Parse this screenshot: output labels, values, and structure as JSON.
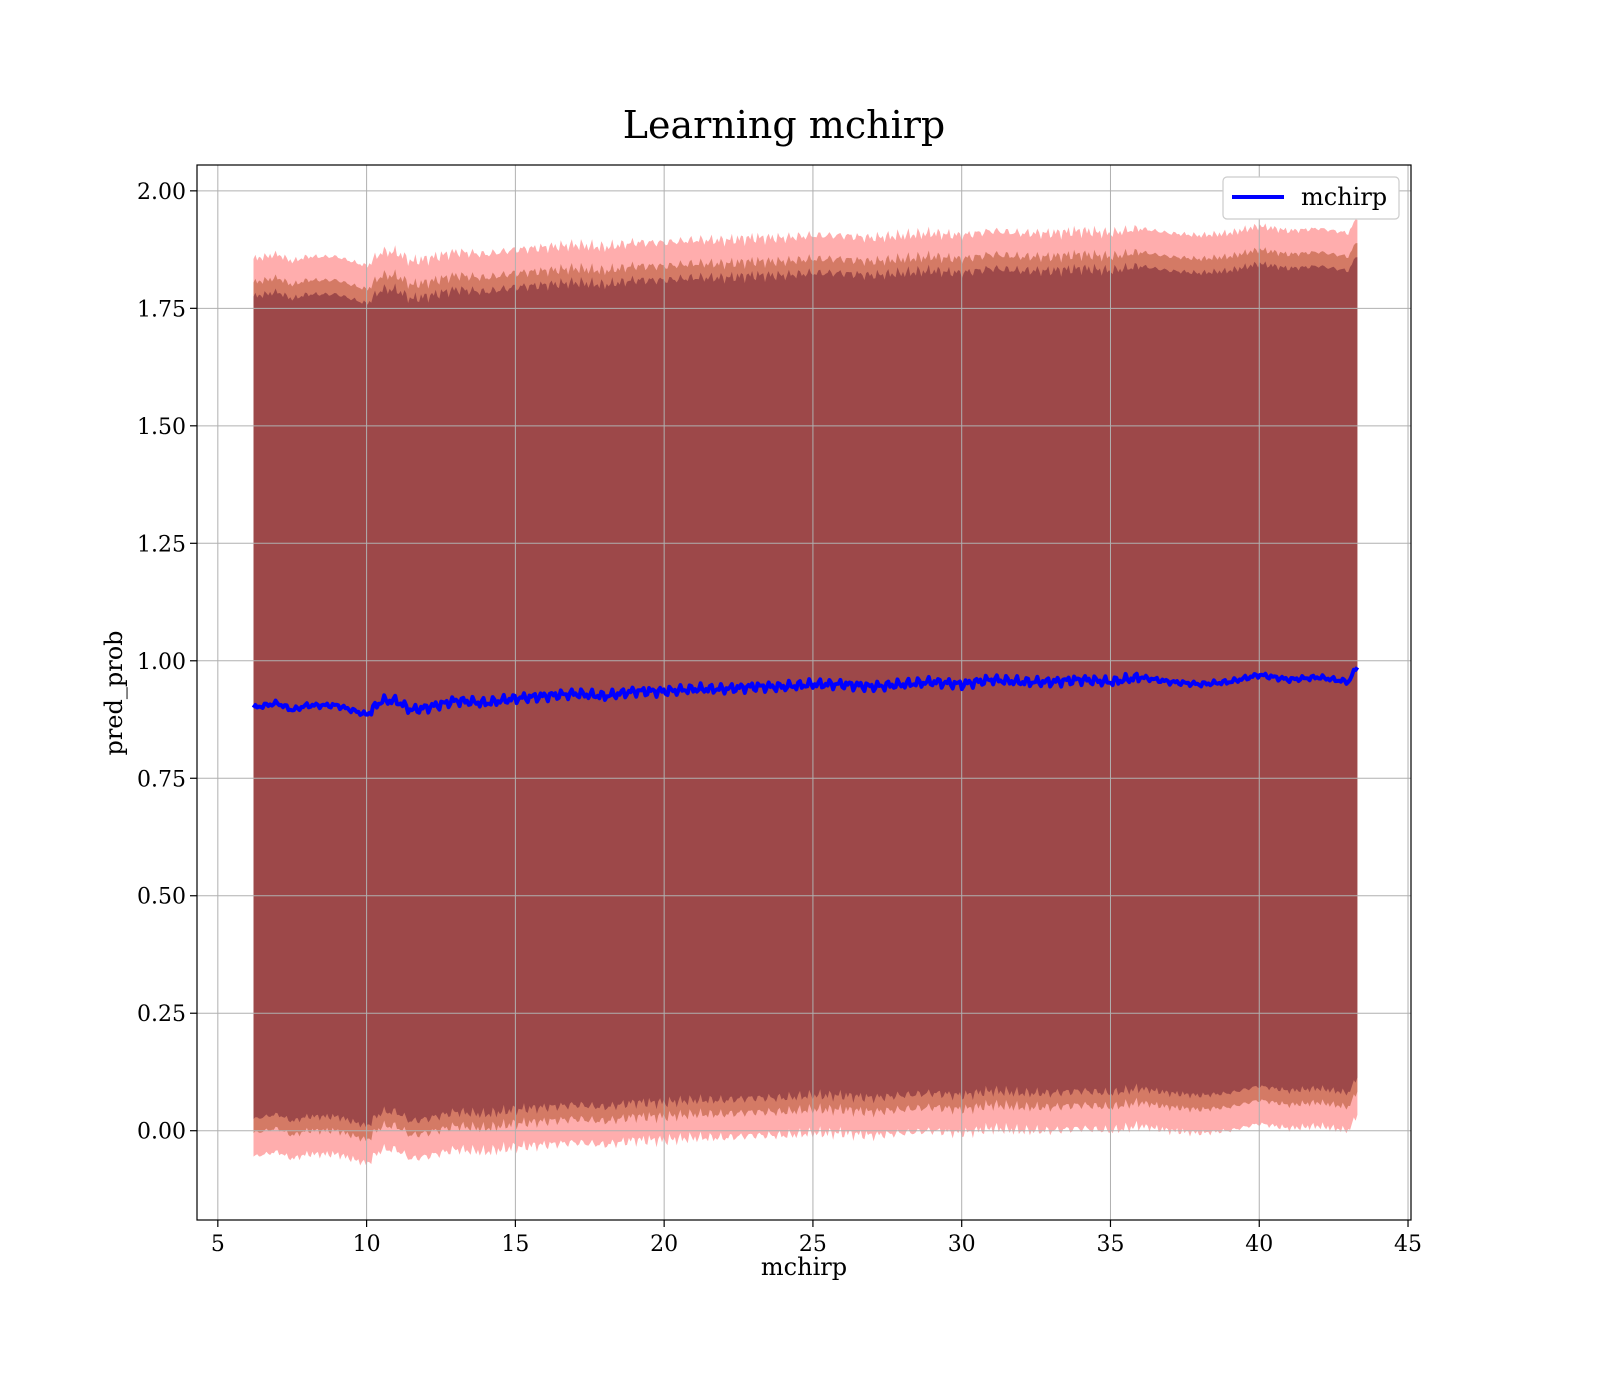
{
  "chart_data": {
    "type": "line",
    "title": "Learning mchirp",
    "xlabel": "mchirp",
    "ylabel": "pred_prob",
    "xlim": [
      4.3,
      45.1
    ],
    "ylim": [
      -0.19,
      2.055
    ],
    "xticks": [
      5,
      10,
      15,
      20,
      25,
      30,
      35,
      40,
      45
    ],
    "yticks": [
      0.0,
      0.25,
      0.5,
      0.75,
      1.0,
      1.25,
      1.5,
      1.75,
      2.0
    ],
    "ytick_labels": [
      "0.00",
      "0.25",
      "0.50",
      "0.75",
      "1.00",
      "1.25",
      "1.50",
      "1.75",
      "2.00"
    ],
    "grid": true,
    "legend": {
      "position": "top-right",
      "entries": [
        "mchirp"
      ]
    },
    "colors": {
      "line": "#0000ff",
      "band_inner": "#5a0a28",
      "band_middle": "#b0502a",
      "band_outer": "#ff6a6a",
      "grid": "#b0b0b0"
    },
    "series": [
      {
        "name": "mchirp",
        "x": [
          6.2,
          7.0,
          7.5,
          8.0,
          9.0,
          9.5,
          10.0,
          10.5,
          11.0,
          11.5,
          12.0,
          13.0,
          14.0,
          15.0,
          16.0,
          17.0,
          18.0,
          19.0,
          20.0,
          21.0,
          22.0,
          23.0,
          24.0,
          25.0,
          26.0,
          27.0,
          28.0,
          29.0,
          30.0,
          31.0,
          32.0,
          33.0,
          34.0,
          35.0,
          36.0,
          37.0,
          38.0,
          39.0,
          40.0,
          41.0,
          42.0,
          43.0,
          43.3
        ],
        "y": [
          0.9,
          0.91,
          0.895,
          0.905,
          0.905,
          0.895,
          0.885,
          0.915,
          0.915,
          0.895,
          0.9,
          0.915,
          0.91,
          0.92,
          0.925,
          0.93,
          0.925,
          0.935,
          0.935,
          0.94,
          0.94,
          0.945,
          0.945,
          0.95,
          0.95,
          0.945,
          0.95,
          0.955,
          0.95,
          0.96,
          0.955,
          0.955,
          0.96,
          0.955,
          0.965,
          0.955,
          0.95,
          0.955,
          0.97,
          0.96,
          0.965,
          0.955,
          0.99
        ],
        "band_1sigma": [
          0.9,
          0.9
        ],
        "band_2sigma_halfwidth": 0.905,
        "band_3sigma_halfwidth": 0.955
      }
    ]
  }
}
